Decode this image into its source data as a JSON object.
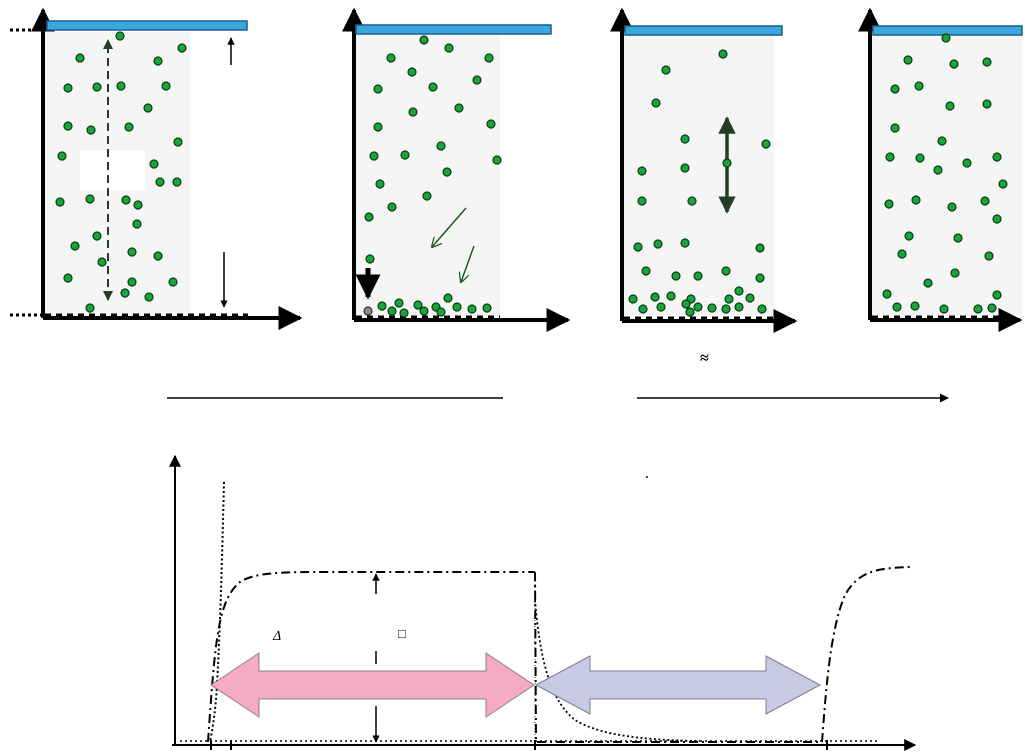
{
  "colors": {
    "electrode": "#3aa7dd",
    "electrode_stroke": "#1a5f88",
    "particle": "#19a33c",
    "particle_stroke": "#0a3d12",
    "inactive_particle": "#8a8a8a",
    "cell_fill": "#f5f5f5",
    "pink_arrow": "#f5aac6",
    "violet_arrow": "#c9c9e6",
    "field_arrow": "#243d24"
  },
  "annotations": {
    "approx_symbol": "≈",
    "stray_dot": ".",
    "delta_symbol": "Δ",
    "box_glyph": "□"
  },
  "icons": {
    "electrode": "blue-bar",
    "particle": "green-dot",
    "axis_arrow": "arrow-head"
  }
}
